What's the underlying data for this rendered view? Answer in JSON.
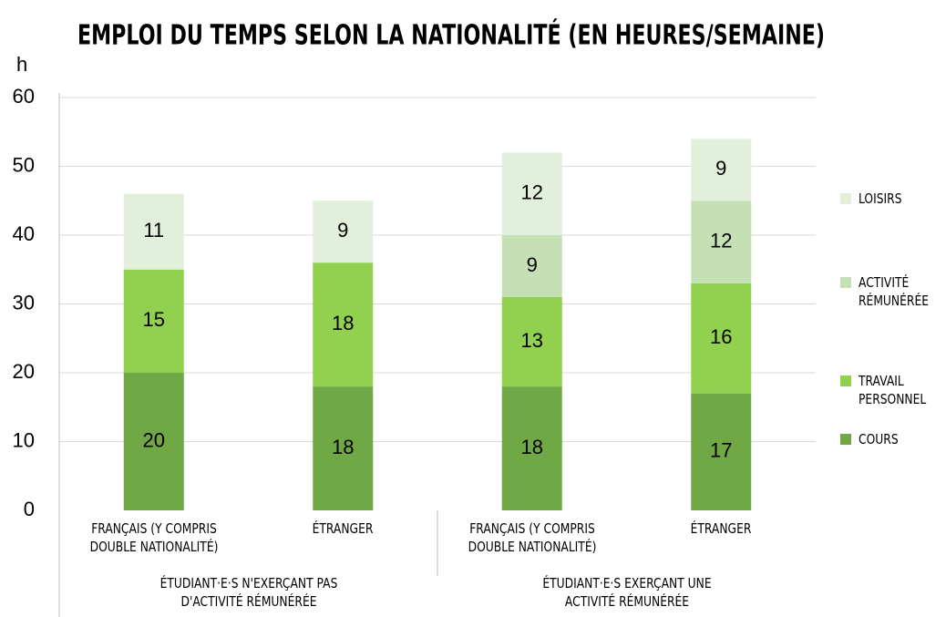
{
  "chart_data": {
    "type": "bar",
    "stacked": true,
    "title": "EMPLOI DU TEMPS SELON LA NATIONALITÉ (EN HEURES/SEMAINE)",
    "ylabel": "h",
    "categories": [
      "FRANÇAIS (Y COMPRIS DOUBLE NATIONALITÉ)",
      "ÉTRANGER",
      "FRANÇAIS (Y COMPRIS DOUBLE NATIONALITÉ)",
      "ÉTRANGER"
    ],
    "groups": [
      "ÉTUDIANT·E·S N'EXERÇANT PAS D'ACTIVITÉ RÉMUNÉRÉE",
      "ÉTUDIANT·E·S EXERÇANT UNE ACTIVITÉ RÉMUNÉRÉE"
    ],
    "series": [
      {
        "name": "COURS",
        "color": "#70a845",
        "values": [
          20,
          18,
          18,
          17
        ]
      },
      {
        "name": "TRAVAIL PERSONNEL",
        "color": "#92d050",
        "values": [
          15,
          18,
          13,
          16
        ]
      },
      {
        "name": "ACTIVITÉ RÉMUNÉRÉE",
        "color": "#c5e0b4",
        "values": [
          0,
          0,
          9,
          12
        ]
      },
      {
        "name": "LOISIRS",
        "color": "#e2efda",
        "values": [
          11,
          9,
          12,
          9
        ]
      }
    ],
    "ylim": [
      0,
      60
    ],
    "yticks": [
      0,
      10,
      20,
      30,
      40,
      50,
      60
    ],
    "grid": true,
    "legend": "right"
  }
}
